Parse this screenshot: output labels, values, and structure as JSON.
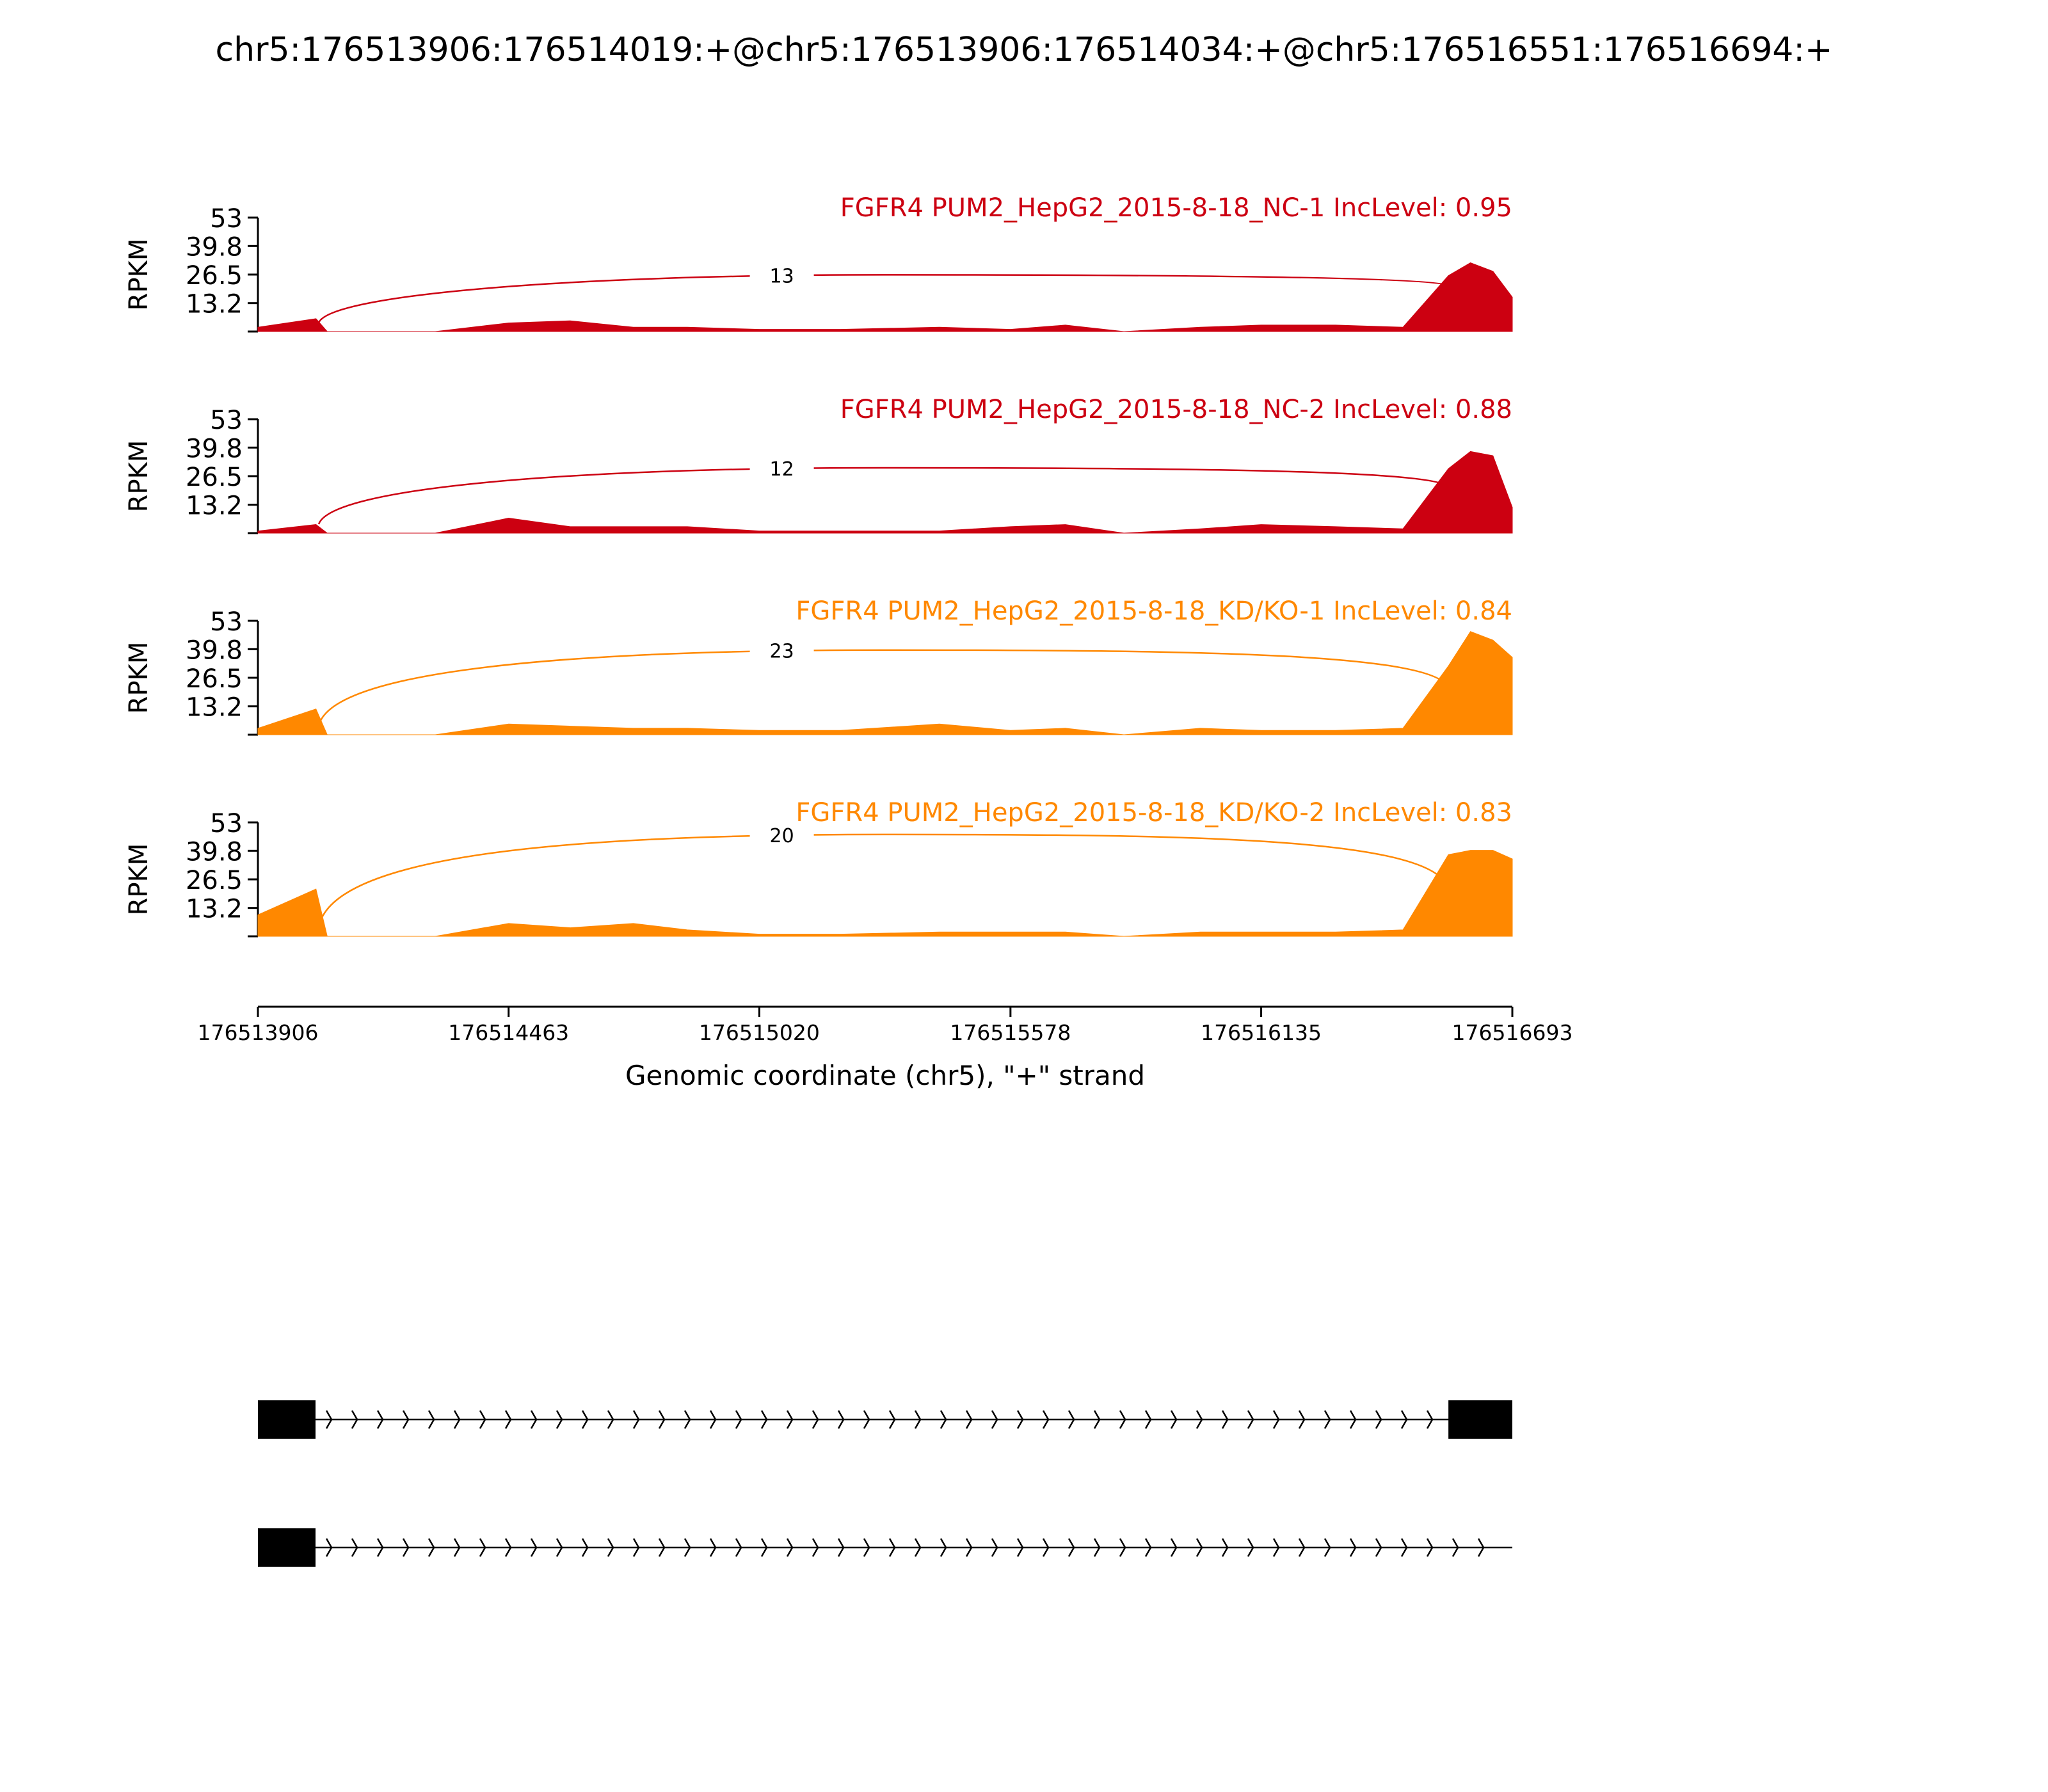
{
  "page_title": "chr5:176513906:176514019:+@chr5:176513906:176514034:+@chr5:176516551:176516694:+",
  "chart_data": {
    "type": "area",
    "subtype": "sashimi",
    "title": "chr5:176513906:176514019:+@chr5:176513906:176514034:+@chr5:176516551:176516694:+",
    "xlabel": "Genomic coordinate (chr5), \"+\" strand",
    "ylabel": "RPKM",
    "xlim": [
      176513906,
      176516693
    ],
    "x_ticks": [
      176513906,
      176514463,
      176515020,
      176515578,
      176516135,
      176516693
    ],
    "x_tick_labels": [
      "176513906",
      "176514463",
      "176515020",
      "176515578",
      "176516135",
      "176516693"
    ],
    "ylim": [
      0,
      53
    ],
    "y_ticks": [
      13.2,
      26.5,
      39.8,
      53
    ],
    "y_tick_labels": [
      "13.2",
      "26.5",
      "39.8",
      "53"
    ],
    "x": [
      176513906,
      176514035,
      176514060,
      176514300,
      176514463,
      176514600,
      176514740,
      176514860,
      176515020,
      176515200,
      176515420,
      176515578,
      176515700,
      176515830,
      176516000,
      176516135,
      176516300,
      176516450,
      176516551,
      176516600,
      176516650,
      176516693
    ],
    "series": [
      {
        "name": "FGFR4 PUM2_HepG2_2015-8-18_NC-1 IncLevel: 0.95",
        "color": "#cc0011",
        "values": [
          2,
          6,
          0,
          0,
          4,
          5,
          2,
          2,
          1,
          1,
          2,
          1,
          3,
          0,
          2,
          3,
          3,
          2,
          26,
          32,
          28,
          16
        ],
        "junctions": [
          {
            "count": "13",
            "label_x": 176515070,
            "label_y": 24
          }
        ]
      },
      {
        "name": "FGFR4 PUM2_HepG2_2015-8-18_NC-2 IncLevel: 0.88",
        "color": "#cc0011",
        "values": [
          1,
          4,
          0,
          0,
          7,
          3,
          3,
          3,
          1,
          1,
          1,
          3,
          4,
          0,
          2,
          4,
          3,
          2,
          30,
          38,
          36,
          12
        ],
        "junctions": [
          {
            "count": "12",
            "label_x": 176515070,
            "label_y": 28
          }
        ]
      },
      {
        "name": "FGFR4 PUM2_HepG2_2015-8-18_KD/KO-1 IncLevel: 0.84",
        "color": "#ff8800",
        "values": [
          3,
          12,
          0,
          0,
          5,
          4,
          3,
          3,
          2,
          2,
          5,
          2,
          3,
          0,
          3,
          2,
          2,
          3,
          32,
          48,
          44,
          36
        ],
        "junctions": [
          {
            "count": "23",
            "label_x": 176515070,
            "label_y": 37
          }
        ]
      },
      {
        "name": "FGFR4 PUM2_HepG2_2015-8-18_KD/KO-2 IncLevel: 0.83",
        "color": "#ff8800",
        "values": [
          10,
          22,
          0,
          0,
          6,
          4,
          6,
          3,
          1,
          1,
          2,
          2,
          2,
          0,
          2,
          2,
          2,
          3,
          38,
          40,
          40,
          36
        ],
        "junctions": [
          {
            "count": "20",
            "label_x": 176515070,
            "label_y": 45
          }
        ]
      }
    ],
    "gene_models": [
      {
        "exons": [
          [
            176513906,
            176514034
          ],
          [
            176516551,
            176516693
          ]
        ]
      },
      {
        "exons": [
          [
            176513906,
            176514034
          ]
        ]
      }
    ]
  }
}
